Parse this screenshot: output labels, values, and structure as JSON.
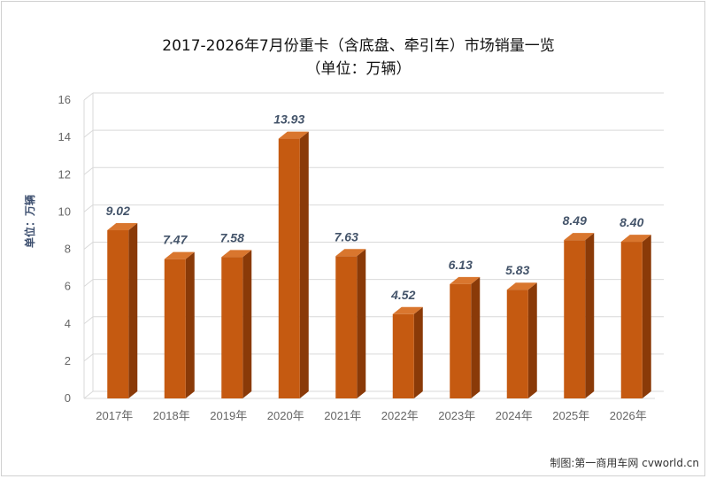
{
  "chart_data": {
    "type": "bar",
    "title": "2017-2026年7月份重卡（含底盘、牵引车）市场销量一览",
    "subtitle": "（单位：万辆）",
    "ylabel": "单位：万辆",
    "categories": [
      "2017年",
      "2018年",
      "2019年",
      "2020年",
      "2021年",
      "2022年",
      "2023年",
      "2024年",
      "2025年",
      "2026年"
    ],
    "values": [
      9.02,
      7.47,
      7.58,
      13.93,
      7.63,
      4.52,
      6.13,
      5.83,
      8.49,
      8.4
    ],
    "data_labels": [
      "9.02",
      "7.47",
      "7.58",
      "13.93",
      "7.63",
      "4.52",
      "6.13",
      "5.83",
      "8.49",
      "8.40"
    ],
    "yticks": [
      "0",
      "2",
      "4",
      "6",
      "8",
      "10",
      "12",
      "14",
      "16"
    ],
    "ylim": [
      0,
      16
    ],
    "grid": true,
    "style": "3d-column",
    "colors": {
      "bar_front": "#c55a11",
      "bar_side": "#8a3a08",
      "bar_top": "#d9762e",
      "grid": "#d9d9d9"
    }
  },
  "source_text": "制图:第一商用车网 cvworld.cn"
}
